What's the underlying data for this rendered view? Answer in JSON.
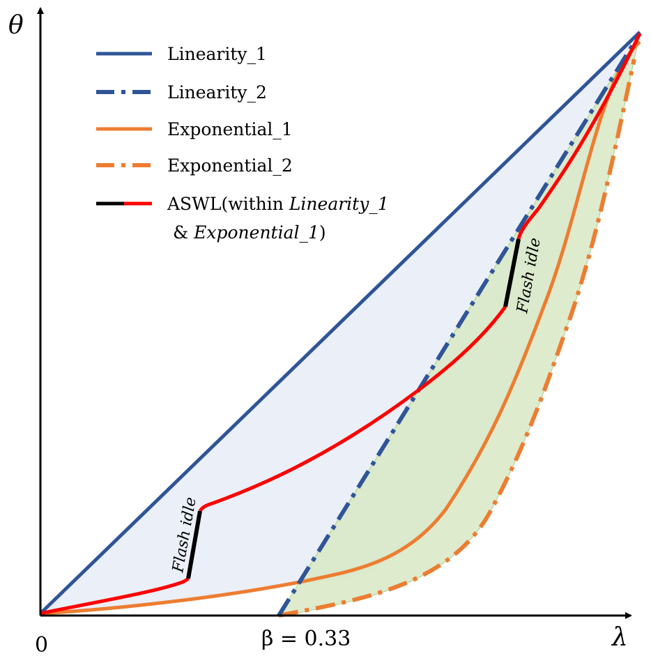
{
  "diagram": {
    "y_axis_symbol": "θ",
    "x_axis_symbol": "λ",
    "origin_label": "0",
    "beta_label": "β = 0.33",
    "annotations": {
      "idle_lower": "Flash idle",
      "idle_upper": "Flash idle"
    },
    "legend": {
      "linearity_1": "Linearity_1",
      "linearity_2": "Linearity_2",
      "exponential_1": "Exponential_1",
      "exponential_2": "Exponential_2",
      "aswl_prefix": "ASWL(within ",
      "aswl_italic_1": "Linearity_1",
      "aswl_line2_prefix": " & ",
      "aswl_italic_2": "Exponential_1",
      "aswl_suffix": ")"
    },
    "colors": {
      "linearity": "#2f5597",
      "exponential": "#ed7d31",
      "aswl": "#ff0000",
      "idle": "#000000",
      "fill_blue": "#eaeff8",
      "fill_green": "#d8e8c4"
    }
  }
}
